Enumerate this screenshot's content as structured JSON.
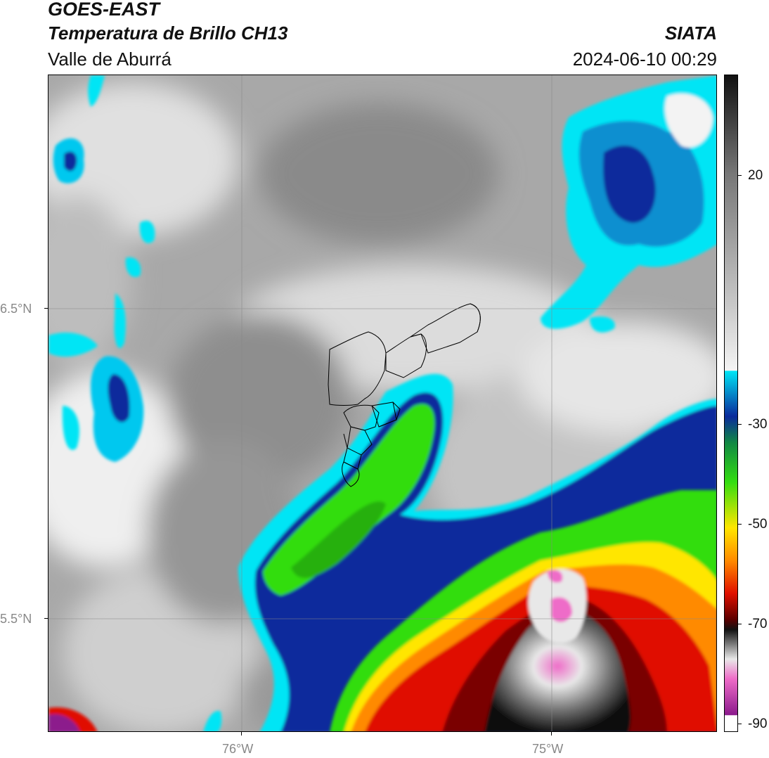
{
  "header": {
    "satellite": "GOES-EAST",
    "product": "Temperatura de Brillo CH13",
    "region": "Valle de Aburrá",
    "organization": "SIATA",
    "timestamp": "2024-06-10 00:29"
  },
  "axes": {
    "lon_labels": [
      "76°W",
      "75°W"
    ],
    "lat_labels": [
      "6.5°N",
      "5.5°N"
    ]
  },
  "colorbar": {
    "labels": [
      "20",
      "-30",
      "-50",
      "-70",
      "-90"
    ],
    "colors": {
      "warm": "#8c8c8c",
      "cyan": "#00e5f5",
      "blue": "#0a2a9c",
      "green": "#33dd11",
      "yellow": "#ffe600",
      "orange": "#ff8a00",
      "red": "#e01000",
      "dark_red": "#5a0000",
      "black": "#111111",
      "pink": "#ee6cc8",
      "purple": "#8c1a8c"
    }
  }
}
